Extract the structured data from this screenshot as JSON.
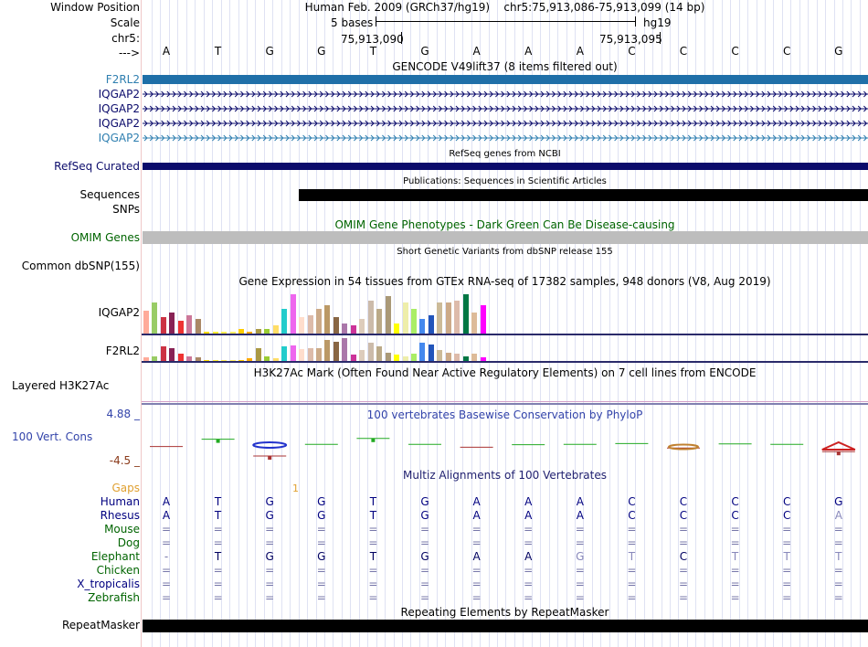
{
  "header": {
    "window_position_label": "Window Position",
    "scale_label": "Scale",
    "chrom_label": "chr5:",
    "arrow_label": "--->",
    "assembly": "Human Feb. 2009 (GRCh37/hg19)",
    "position": "chr5:75,913,086-75,913,099 (14 bp)",
    "scale_text": "5 bases",
    "assembly_short": "hg19",
    "pos_left": "75,913,090",
    "pos_right": "75,913,095",
    "bases": [
      "A",
      "T",
      "G",
      "G",
      "T",
      "G",
      "A",
      "A",
      "A",
      "C",
      "C",
      "C",
      "C",
      "G"
    ]
  },
  "gencode": {
    "title": "GENCODE V49lift37 (8 items filtered out)",
    "items": [
      "F2RL2",
      "IQGAP2",
      "IQGAP2",
      "IQGAP2",
      "IQGAP2"
    ]
  },
  "refseq": {
    "title": "RefSeq genes from NCBI",
    "label": "RefSeq Curated"
  },
  "publications": {
    "title": "Publications: Sequences in Scientific Articles",
    "label_sequences": "Sequences",
    "label_snps": "SNPs"
  },
  "omim": {
    "title": "OMIM Gene Phenotypes - Dark Green Can Be Disease-causing",
    "label": "OMIM Genes"
  },
  "dbsnp": {
    "title": "Short Genetic Variants from dbSNP release 155",
    "label": "Common dbSNP(155)"
  },
  "gtex": {
    "title": "Gene Expression in 54 tissues from GTEx RNA-seq of 17382 samples, 948 donors (V8, Aug 2019)",
    "gene1": "IQGAP2",
    "gene2": "F2RL2",
    "colors": [
      "#ffaa99",
      "#99cc66",
      "#cc3344",
      "#882255",
      "#ee3333",
      "#cc7799",
      "#aa8866",
      "#ffdd00",
      "#ffee33",
      "#ffee55",
      "#ffee66",
      "#ffcc00",
      "#ffaa00",
      "#aa9944",
      "#99cc33",
      "#ffdd66",
      "#22cccc",
      "#ee66ee",
      "#ffddcc",
      "#ddbbaa",
      "#ccaa88",
      "#bb9966",
      "#886644",
      "#aa77aa",
      "#cc3399",
      "#ddccbb",
      "#ccbbaa",
      "#bbaa88",
      "#aa9977",
      "#ffff00",
      "#eeeeaa",
      "#aaee66",
      "#4488ee",
      "#2255bb",
      "#ccbb99",
      "#ccaa88",
      "#ddbbaa",
      "#007744",
      "#ddbb99",
      "#ff00ff",
      "#cc99cc",
      "#bb66bb",
      "#994499",
      "#553388"
    ],
    "values1": [
      0.55,
      0.75,
      0.4,
      0.5,
      0.3,
      0.45,
      0.35,
      0.05,
      0.05,
      0.05,
      0.05,
      0.1,
      0.05,
      0.1,
      0.1,
      0.2,
      0.6,
      0.95,
      0.4,
      0.45,
      0.6,
      0.7,
      0.4,
      0.25,
      0.2,
      0.35,
      0.8,
      0.6,
      0.9,
      0.25,
      0.75,
      0.6,
      0.35,
      0.45,
      0.75,
      0.75,
      0.8,
      0.95,
      0.5,
      0.7
    ],
    "values2": [
      0.15,
      0.2,
      0.6,
      0.55,
      0.3,
      0.2,
      0.15,
      0.05,
      0.05,
      0.05,
      0.05,
      0.05,
      0.1,
      0.55,
      0.2,
      0.1,
      0.6,
      0.65,
      0.5,
      0.55,
      0.55,
      0.9,
      0.8,
      0.95,
      0.25,
      0.45,
      0.75,
      0.6,
      0.35,
      0.25,
      0.2,
      0.3,
      0.75,
      0.7,
      0.45,
      0.35,
      0.3,
      0.2,
      0.3,
      0.15
    ]
  },
  "h3k27ac": {
    "title": "H3K27Ac Mark (Often Found Near Active Regulatory Elements) on 7 cell lines from ENCODE",
    "label": "Layered H3K27Ac"
  },
  "phylop": {
    "title": "100 vertebrates Basewise Conservation by PhyloP",
    "label": "100 Vert. Cons",
    "max": "4.88 _",
    "min": "-4.5 _",
    "scores": [
      -0.2,
      0.8,
      -1.5,
      0.1,
      0.9,
      0.1,
      -0.3,
      0.05,
      0.1,
      0.2,
      -0.4,
      0.15,
      0.1,
      -0.9
    ]
  },
  "multiz": {
    "title": "Multiz Alignments of 100 Vertebrates",
    "gaps_label": "Gaps",
    "gap_value": "1",
    "species": [
      {
        "name": "Human",
        "color": "#000080",
        "seq": [
          "A",
          "T",
          "G",
          "G",
          "T",
          "G",
          "A",
          "A",
          "A",
          "C",
          "C",
          "C",
          "C",
          "G"
        ]
      },
      {
        "name": "Rhesus",
        "color": "#000080",
        "seq": [
          "A",
          "T",
          "G",
          "G",
          "T",
          "G",
          "A",
          "A",
          "A",
          "C",
          "C",
          "C",
          "C",
          "A"
        ]
      },
      {
        "name": "Mouse",
        "color": "#006400",
        "seq": [
          "=",
          "=",
          "=",
          "=",
          "=",
          "=",
          "=",
          "=",
          "=",
          "=",
          "=",
          "=",
          "=",
          "="
        ]
      },
      {
        "name": "Dog",
        "color": "#006400",
        "seq": [
          "=",
          "=",
          "=",
          "=",
          "=",
          "=",
          "=",
          "=",
          "=",
          "=",
          "=",
          "=",
          "=",
          "="
        ]
      },
      {
        "name": "Elephant",
        "color": "#006400",
        "seq": [
          "-",
          "T",
          "G",
          "G",
          "T",
          "G",
          "A",
          "A",
          "G",
          "T",
          "C",
          "T",
          "T",
          "T"
        ]
      },
      {
        "name": "Chicken",
        "color": "#006400",
        "seq": [
          "=",
          "=",
          "=",
          "=",
          "=",
          "=",
          "=",
          "=",
          "=",
          "=",
          "=",
          "=",
          "=",
          "="
        ]
      },
      {
        "name": "X_tropicalis",
        "color": "#000080",
        "seq": [
          "=",
          "=",
          "=",
          "=",
          "=",
          "=",
          "=",
          "=",
          "=",
          "=",
          "=",
          "=",
          "=",
          "="
        ]
      },
      {
        "name": "Zebrafish",
        "color": "#006400",
        "seq": [
          "=",
          "=",
          "=",
          "=",
          "=",
          "=",
          "=",
          "=",
          "=",
          "=",
          "=",
          "=",
          "=",
          "="
        ]
      }
    ]
  },
  "repeatmasker": {
    "title": "Repeating Elements by RepeatMasker",
    "label": "RepeatMasker"
  },
  "colors": {
    "gencode_label": "#2f7fb0",
    "gencode_bar": "#1f6fa8",
    "refseq": "#0b0b6b",
    "omim_green": "#006400",
    "omim_bar": "#bdbdbd",
    "phylop_blue": "#3344aa",
    "gaps": "#e0a030"
  }
}
